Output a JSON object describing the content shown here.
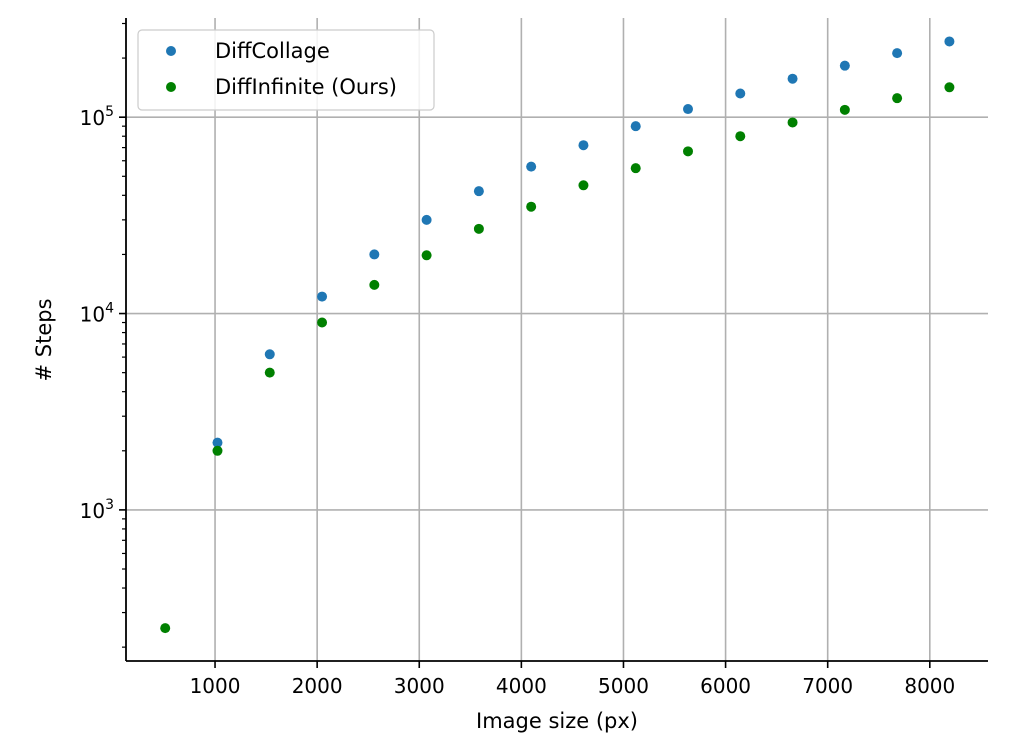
{
  "chart_data": {
    "type": "scatter",
    "xlabel": "Image size (px)",
    "ylabel": "# Steps",
    "xlim": [
      128,
      8570
    ],
    "ylim": [
      170,
      320000
    ],
    "yscale": "log",
    "grid": true,
    "legend_position": "top-left",
    "x_ticks": [
      1000,
      2000,
      3000,
      4000,
      5000,
      6000,
      7000,
      8000
    ],
    "x_tick_labels": [
      "1000",
      "2000",
      "3000",
      "4000",
      "5000",
      "6000",
      "7000",
      "8000"
    ],
    "y_ticks": [
      1000,
      10000,
      100000
    ],
    "y_tick_labels": [
      {
        "base": "10",
        "exp": "3"
      },
      {
        "base": "10",
        "exp": "4"
      },
      {
        "base": "10",
        "exp": "5"
      }
    ],
    "series": [
      {
        "name": "DiffCollage",
        "color": "#1f77b4",
        "points": [
          [
            1024,
            2200
          ],
          [
            1536,
            6200
          ],
          [
            2048,
            12200
          ],
          [
            2560,
            20000
          ],
          [
            3072,
            30000
          ],
          [
            3584,
            42000
          ],
          [
            4096,
            56000
          ],
          [
            4608,
            72000
          ],
          [
            5120,
            90000
          ],
          [
            5632,
            110000
          ],
          [
            6144,
            132000
          ],
          [
            6656,
            157000
          ],
          [
            7168,
            183000
          ],
          [
            7680,
            212000
          ],
          [
            8192,
            243000
          ]
        ]
      },
      {
        "name": "DiffInfinite (Ours)",
        "color": "#008000",
        "points": [
          [
            512,
            250
          ],
          [
            1024,
            2000
          ],
          [
            1536,
            5000
          ],
          [
            2048,
            9000
          ],
          [
            2560,
            14000
          ],
          [
            3072,
            19800
          ],
          [
            3584,
            27000
          ],
          [
            4096,
            35000
          ],
          [
            4608,
            45000
          ],
          [
            5120,
            55000
          ],
          [
            5632,
            67000
          ],
          [
            6144,
            80000
          ],
          [
            6656,
            94000
          ],
          [
            7168,
            109000
          ],
          [
            7680,
            125000
          ],
          [
            8192,
            142000
          ]
        ]
      }
    ]
  }
}
